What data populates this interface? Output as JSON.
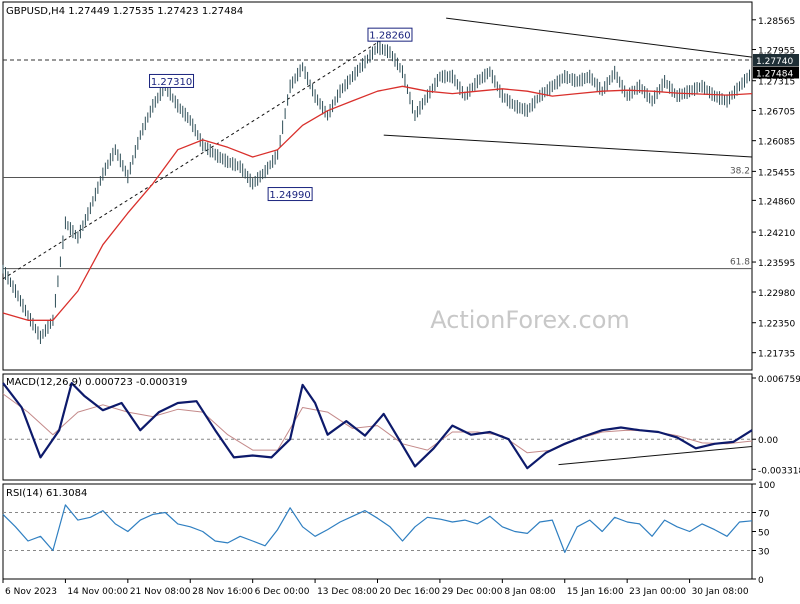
{
  "header": {
    "symbol_line": "GBPUSD,H4  1.27449 1.27535 1.27423 1.27484"
  },
  "watermark": "ActionForex.com",
  "colors": {
    "candle": "#2e4e57",
    "ma": "#d9302c",
    "macd": "#0d1a6b",
    "macd_signal": "#c48a8a",
    "rsi": "#2f7fc1",
    "trend": "#111111",
    "level": "#555555"
  },
  "chart_data": [
    {
      "type": "line",
      "panel": "price",
      "ylim": [
        1.2138,
        1.2893
      ],
      "y_ticks": [
        "1.28565",
        "1.27955",
        "1.27315",
        "1.26705",
        "1.26085",
        "1.25455",
        "1.24860",
        "1.24210",
        "1.23595",
        "1.22980",
        "1.22350",
        "1.21735"
      ],
      "y_tick_values": [
        1.28565,
        1.27955,
        1.27315,
        1.26705,
        1.26085,
        1.25455,
        1.2486,
        1.2421,
        1.23595,
        1.2298,
        1.2235,
        1.21735
      ],
      "x_ticks": [
        "6 Nov 2023",
        "14 Nov 00:00",
        "21 Nov 08:00",
        "28 Nov 16:00",
        "6 Dec 00:00",
        "13 Dec 08:00",
        "20 Dec 16:00",
        "29 Dec 00:00",
        "8 Jan 08:00",
        "15 Jan 16:00",
        "23 Jan 00:00",
        "30 Jan 08:00"
      ],
      "x_tick_positions": [
        0,
        10,
        20,
        30,
        40,
        50,
        60,
        70,
        80,
        90,
        100,
        110
      ],
      "x_range": [
        0,
        120
      ],
      "close_series": {
        "x": [
          0,
          2,
          4,
          6,
          8,
          10,
          12,
          14,
          16,
          18,
          20,
          22,
          24,
          26,
          28,
          30,
          32,
          34,
          36,
          38,
          40,
          42,
          44,
          46,
          48,
          50,
          52,
          54,
          56,
          58,
          60,
          62,
          64,
          66,
          68,
          70,
          72,
          74,
          76,
          78,
          80,
          82,
          84,
          86,
          88,
          90,
          92,
          94,
          96,
          98,
          100,
          102,
          104,
          106,
          108,
          110,
          112,
          114,
          116,
          118,
          120
        ],
        "y": [
          1.2345,
          1.23,
          1.225,
          1.2205,
          1.224,
          1.244,
          1.241,
          1.247,
          1.254,
          1.259,
          1.2535,
          1.262,
          1.268,
          1.272,
          1.268,
          1.265,
          1.26,
          1.258,
          1.2565,
          1.2555,
          1.252,
          1.2545,
          1.258,
          1.272,
          1.276,
          1.27,
          1.266,
          1.271,
          1.274,
          1.277,
          1.28,
          1.279,
          1.275,
          1.266,
          1.27,
          1.274,
          1.274,
          1.27,
          1.273,
          1.275,
          1.27,
          1.268,
          1.267,
          1.27,
          1.272,
          1.274,
          1.273,
          1.274,
          1.271,
          1.2748,
          1.27,
          1.272,
          1.269,
          1.273,
          1.27,
          1.271,
          1.272,
          1.27,
          1.269,
          1.272,
          1.2748
        ]
      },
      "ma_series": {
        "x": [
          0,
          4,
          8,
          12,
          16,
          20,
          24,
          28,
          32,
          36,
          40,
          44,
          48,
          52,
          56,
          60,
          64,
          68,
          72,
          76,
          80,
          84,
          88,
          92,
          96,
          100,
          104,
          108,
          112,
          116,
          120
        ],
        "y": [
          1.2255,
          1.224,
          1.224,
          1.23,
          1.2395,
          1.246,
          1.252,
          1.259,
          1.261,
          1.2595,
          1.2575,
          1.259,
          1.264,
          1.267,
          1.269,
          1.271,
          1.272,
          1.271,
          1.2705,
          1.271,
          1.2715,
          1.271,
          1.27,
          1.2705,
          1.271,
          1.2712,
          1.271,
          1.2706,
          1.2704,
          1.2702,
          1.2705
        ]
      },
      "labels": [
        {
          "text": "1.28260",
          "x": 62,
          "y": 1.2826
        },
        {
          "text": "1.27310",
          "x": 27,
          "y": 1.2731
        },
        {
          "text": "1.24990",
          "x": 46,
          "y": 1.2499
        }
      ],
      "price_tags": [
        {
          "text": "1.27740",
          "y": 1.2774,
          "style": "dark"
        },
        {
          "text": "1.27484",
          "y": 1.27484,
          "style": "dark"
        }
      ],
      "levels": [
        {
          "name": "38.2",
          "y": 1.2533
        },
        {
          "name": "61.8",
          "y": 1.2346
        }
      ],
      "dashed_level": 1.2774,
      "trendlines": [
        {
          "x": [
            0,
            62
          ],
          "y": [
            1.2325,
            1.2826
          ]
        },
        {
          "x": [
            71,
            120
          ],
          "y": [
            1.286,
            1.278
          ]
        },
        {
          "x": [
            61,
            120
          ],
          "y": [
            1.262,
            1.2575
          ]
        }
      ]
    },
    {
      "type": "line",
      "panel": "macd",
      "title": "MACD(12,26,9) 0.000723 -0.000319",
      "ylim": [
        -0.0045,
        0.0072
      ],
      "y_ticks": [
        "0.006759",
        "0.00",
        "-0.003318"
      ],
      "y_tick_values": [
        0.006759,
        0.0,
        -0.003318
      ],
      "macd": {
        "x": [
          0,
          3,
          6,
          9,
          11,
          13,
          16,
          19,
          22,
          25,
          28,
          31,
          34,
          37,
          40,
          43,
          46,
          48,
          50,
          52,
          55,
          58,
          61,
          63,
          66,
          69,
          72,
          75,
          78,
          81,
          84,
          87,
          90,
          93,
          96,
          99,
          102,
          105,
          108,
          111,
          114,
          117,
          120
        ],
        "y": [
          0.0062,
          0.0035,
          -0.002,
          0.001,
          0.0062,
          0.0048,
          0.0032,
          0.004,
          0.001,
          0.003,
          0.004,
          0.0042,
          0.001,
          -0.002,
          -0.0018,
          -0.002,
          0.0,
          0.006,
          0.004,
          0.0005,
          0.002,
          0.0004,
          0.0028,
          0.0005,
          -0.003,
          -0.001,
          0.0015,
          0.0005,
          0.0008,
          0.0,
          -0.0032,
          -0.0015,
          -0.0005,
          0.0003,
          0.001,
          0.0013,
          0.001,
          0.0008,
          0.0002,
          -0.001,
          -0.0005,
          -0.0003,
          0.001
        ]
      },
      "signal": {
        "x": [
          0,
          4,
          8,
          12,
          16,
          20,
          24,
          28,
          32,
          36,
          40,
          44,
          48,
          52,
          56,
          60,
          64,
          68,
          72,
          76,
          80,
          84,
          88,
          92,
          96,
          100,
          104,
          108,
          112,
          116,
          120
        ],
        "y": [
          0.005,
          0.003,
          0.0005,
          0.003,
          0.0038,
          0.003,
          0.0025,
          0.0033,
          0.003,
          0.0005,
          -0.0012,
          -0.0012,
          0.0035,
          0.003,
          0.0012,
          0.0015,
          -0.0005,
          -0.0012,
          0.0008,
          0.0008,
          0.0004,
          -0.0015,
          -0.0012,
          0.0,
          0.0008,
          0.001,
          0.0009,
          0.0004,
          -0.0004,
          -0.0005,
          -0.0002
        ]
      },
      "trendline": {
        "x": [
          89,
          120
        ],
        "y": [
          -0.0028,
          -0.0008
        ]
      }
    },
    {
      "type": "line",
      "panel": "rsi",
      "title": "RSI(14) 61.3084",
      "ylim": [
        0,
        100
      ],
      "y_ticks": [
        "100",
        "70",
        "50",
        "30",
        "0"
      ],
      "y_tick_values": [
        100,
        70,
        50,
        30,
        0
      ],
      "dashed_levels": [
        70,
        30
      ],
      "rsi": {
        "x": [
          0,
          2,
          4,
          6,
          8,
          10,
          12,
          14,
          16,
          18,
          20,
          22,
          24,
          26,
          28,
          30,
          32,
          34,
          36,
          38,
          40,
          42,
          44,
          46,
          48,
          50,
          52,
          54,
          56,
          58,
          60,
          62,
          64,
          66,
          68,
          70,
          72,
          74,
          76,
          78,
          80,
          82,
          84,
          86,
          88,
          90,
          92,
          94,
          96,
          98,
          100,
          102,
          104,
          106,
          108,
          110,
          112,
          114,
          116,
          118,
          120
        ],
        "y": [
          68,
          55,
          40,
          45,
          30,
          78,
          62,
          65,
          72,
          58,
          50,
          62,
          68,
          70,
          58,
          55,
          50,
          40,
          38,
          45,
          40,
          35,
          52,
          75,
          55,
          45,
          52,
          60,
          66,
          72,
          64,
          55,
          40,
          55,
          65,
          63,
          60,
          62,
          58,
          66,
          55,
          50,
          48,
          60,
          62,
          28,
          55,
          62,
          50,
          65,
          60,
          58,
          45,
          62,
          55,
          50,
          58,
          52,
          45,
          60,
          61.3
        ]
      }
    }
  ]
}
